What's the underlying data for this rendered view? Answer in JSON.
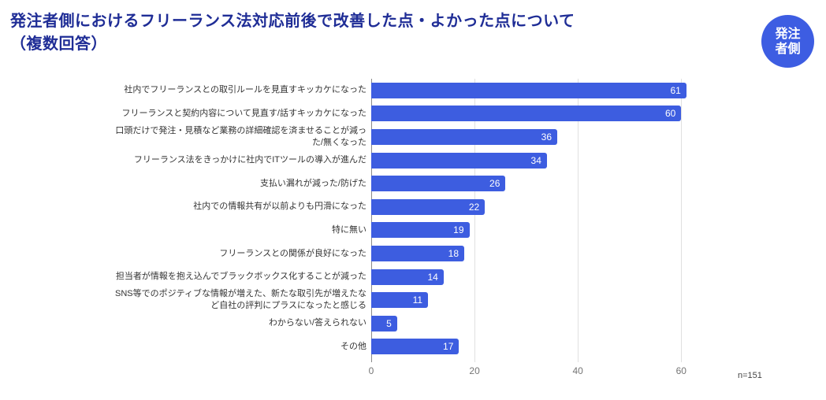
{
  "title": {
    "line1": "発注者側におけるフリーランス法対応前後で改善した点・よかった点について",
    "line2": "（複数回答）"
  },
  "badge": {
    "line1": "発注",
    "line2": "者側"
  },
  "note": "n=151",
  "colors": {
    "bar": "#3d5de0",
    "badge": "#3d5de2",
    "title": "#1f2d96",
    "gridline": "#e0e0e0",
    "axis_line": "#8a8a8a",
    "category_label": "#333333",
    "tick_label": "#757575"
  },
  "chart_data": {
    "type": "bar",
    "orientation": "horizontal",
    "title": "発注者側におけるフリーランス法対応前後で改善した点・よかった点について（複数回答）",
    "categories": [
      "社内でフリーランスとの取引ルールを見直すキッカケになった",
      "フリーランスと契約内容について見直す/話すキッカケになった",
      "口頭だけで発注・見積など業務の詳細確認を済ませることが減った/無くなった",
      "フリーランス法をきっかけに社内でITツールの導入が進んだ",
      "支払い漏れが減った/防げた",
      "社内での情報共有が以前よりも円滑になった",
      "特に無い",
      "フリーランスとの関係が良好になった",
      "担当者が情報を抱え込んでブラックボックス化することが減った",
      "SNS等でのポジティブな情報が増えた、新たな取引先が増えたなど自社の評判にプラスになったと感じる",
      "わからない/答えられない",
      "その他"
    ],
    "values": [
      61,
      60,
      36,
      34,
      26,
      22,
      19,
      18,
      14,
      11,
      5,
      17
    ],
    "xlabel": "",
    "ylabel": "",
    "xlim": [
      0,
      65.6
    ],
    "x_ticks": [
      0,
      20,
      40,
      60
    ],
    "grid": true,
    "legend": "none",
    "value_labels": "inside-end",
    "sample_size": "n=151"
  }
}
